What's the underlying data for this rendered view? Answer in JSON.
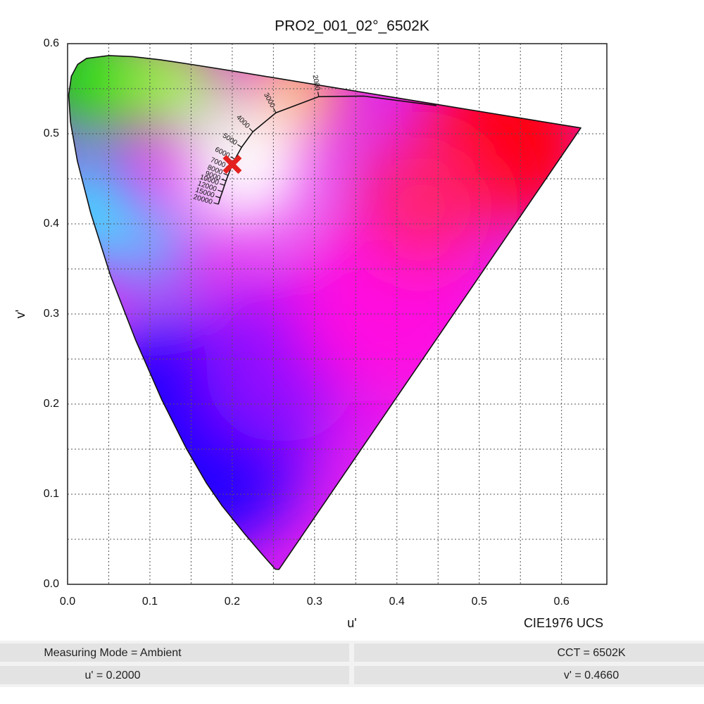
{
  "chart_data": {
    "type": "chromaticity",
    "title": "PRO2_001_02°_6502K",
    "xlabel": "u'",
    "ylabel": "v'",
    "note": "CIE1976 UCS",
    "xlim": [
      0,
      0.655
    ],
    "ylim": [
      0,
      0.6
    ],
    "xticks": [
      {
        "value": 0,
        "label": "0.0"
      },
      0.1,
      0.2,
      0.3,
      0.4,
      0.5,
      0.6
    ],
    "yticks": [
      {
        "value": 0,
        "label": "0.0"
      },
      0.1,
      0.2,
      0.3,
      0.4,
      0.5,
      0.6
    ],
    "xminor": [
      0.05,
      0.15,
      0.25,
      0.35,
      0.45,
      0.55
    ],
    "yminor": [
      0.05,
      0.15,
      0.25,
      0.35,
      0.45,
      0.55
    ],
    "grid": true,
    "spectral_locus": {
      "u": [
        0.2568,
        0.2522,
        0.2347,
        0.2161,
        0.1877,
        0.169,
        0.1441,
        0.1147,
        0.0828,
        0.0521,
        0.0282,
        0.0119,
        0.0035,
        0.0014,
        0.0046,
        0.0123,
        0.0231,
        0.0501,
        0.0792,
        0.1127,
        0.1531,
        0.2026,
        0.2623,
        0.4035,
        0.5203,
        0.6234
      ],
      "v": [
        0.0166,
        0.0169,
        0.035,
        0.0549,
        0.0871,
        0.1119,
        0.151,
        0.2044,
        0.2708,
        0.3427,
        0.4117,
        0.4698,
        0.5131,
        0.5432,
        0.5638,
        0.577,
        0.5837,
        0.5868,
        0.5856,
        0.5821,
        0.5766,
        0.5694,
        0.5604,
        0.5393,
        0.5219,
        0.5065
      ]
    },
    "planckian": {
      "cct": [
        20000,
        15000,
        12000,
        10000,
        9000,
        8000,
        7000,
        6000,
        5000,
        4000,
        3000,
        2000,
        null,
        null
      ],
      "u": [
        0.1831,
        0.1854,
        0.188,
        0.1906,
        0.1925,
        0.195,
        0.1985,
        0.2033,
        0.2114,
        0.2251,
        0.253,
        0.3051,
        0.3597,
        0.448
      ],
      "v": [
        0.4218,
        0.4289,
        0.4357,
        0.4428,
        0.4478,
        0.4539,
        0.4617,
        0.4719,
        0.4851,
        0.5022,
        0.5233,
        0.5412,
        0.5418,
        0.5313
      ]
    },
    "point": {
      "x": 0.2,
      "y": 0.466,
      "color": "#e3211e",
      "value_labels": [
        "u' = 0.2000",
        "v' = 0.4660"
      ]
    },
    "status": [
      "Measuring Mode = Ambient",
      "CCT = 6502K"
    ]
  }
}
